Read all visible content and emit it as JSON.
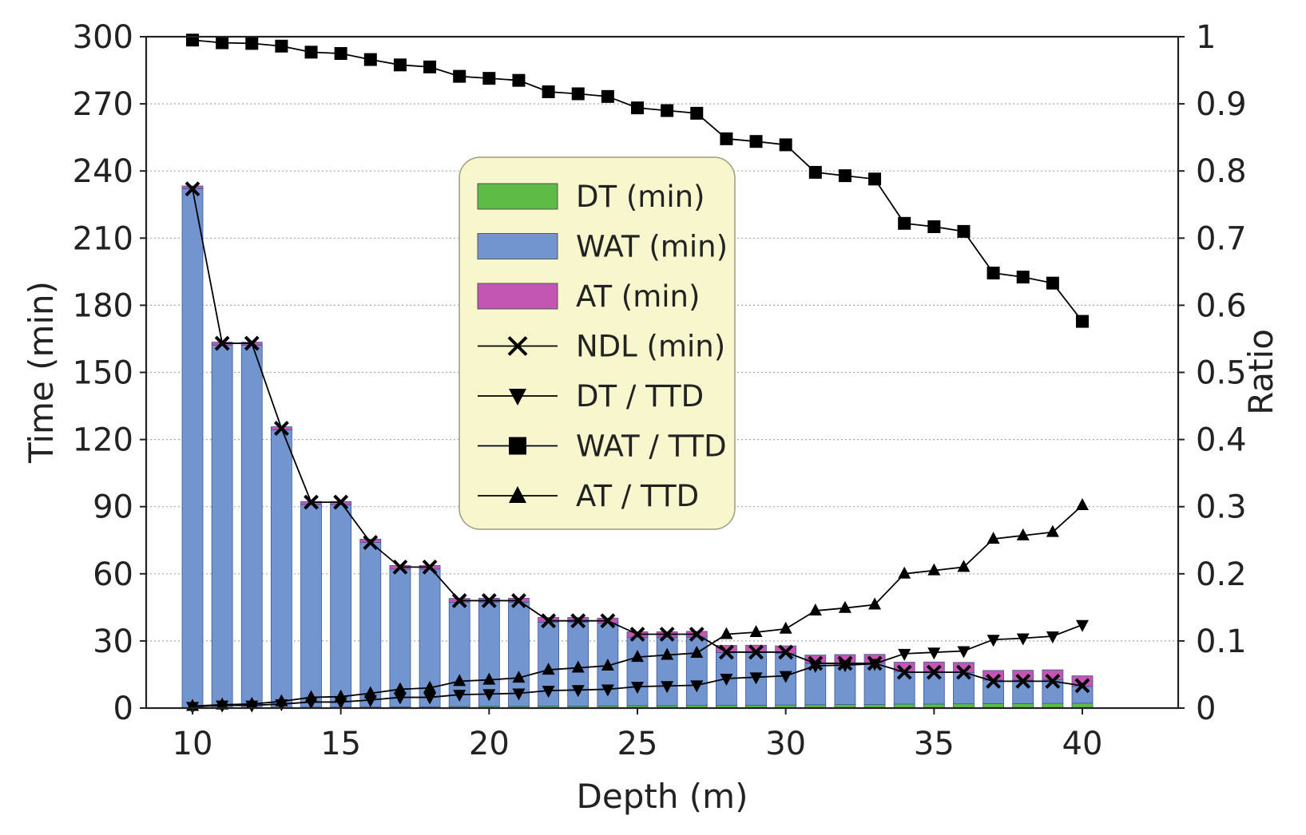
{
  "chart_data": {
    "type": "bar",
    "xlabel": "Depth (m)",
    "ylabel": "Time (min)",
    "y2label": "Ratio",
    "xlim": [
      10,
      40
    ],
    "ylim": [
      0,
      300
    ],
    "y2lim": [
      0,
      1
    ],
    "x_ticks": [
      "10",
      "15",
      "20",
      "25",
      "30",
      "35",
      "40"
    ],
    "y_ticks": [
      "0",
      "30",
      "60",
      "90",
      "120",
      "150",
      "180",
      "210",
      "240",
      "270",
      "300"
    ],
    "y2_ticks": [
      "0",
      "0.1",
      "0.2",
      "0.3",
      "0.4",
      "0.5",
      "0.6",
      "0.7",
      "0.8",
      "0.9",
      "1"
    ],
    "grid": "horizontal dotted",
    "legend_position": "center-left",
    "x": [
      10,
      11,
      12,
      13,
      14,
      15,
      16,
      17,
      18,
      19,
      20,
      21,
      22,
      23,
      24,
      25,
      26,
      27,
      28,
      29,
      30,
      31,
      32,
      33,
      34,
      35,
      36,
      37,
      38,
      39,
      40
    ],
    "series": [
      {
        "name": "DT (min)",
        "kind": "stacked-bar",
        "axis": "left",
        "color": "#5dbb46",
        "values": [
          0.1,
          0.2,
          0.2,
          0.3,
          0.4,
          0.4,
          0.5,
          0.6,
          0.6,
          0.7,
          0.8,
          0.8,
          0.9,
          0.9,
          1.0,
          1.1,
          1.1,
          1.2,
          1.3,
          1.3,
          1.4,
          1.5,
          1.6,
          1.6,
          1.8,
          1.8,
          1.9,
          2.0,
          2.0,
          2.1,
          2.2
        ]
      },
      {
        "name": "WAT (min)",
        "kind": "stacked-bar",
        "axis": "left",
        "color": "#7294cf",
        "values": [
          232.0,
          162.0,
          162.0,
          124.0,
          90.5,
          90.5,
          73.5,
          61.5,
          61.5,
          46.5,
          46.5,
          46.5,
          37.5,
          37.5,
          37.0,
          30.5,
          30.5,
          30.5,
          23.5,
          23.5,
          23.0,
          18.5,
          18.5,
          18.5,
          14.5,
          14.5,
          14.0,
          10.5,
          10.5,
          10.5,
          7.5
        ]
      },
      {
        "name": "AT (min)",
        "kind": "stacked-bar",
        "axis": "left",
        "color": "#c256b2",
        "values": [
          1.2,
          1.3,
          1.3,
          1.4,
          1.4,
          1.4,
          1.5,
          1.6,
          1.6,
          1.8,
          1.8,
          1.8,
          2.1,
          2.1,
          2.2,
          2.5,
          2.5,
          2.6,
          3.2,
          3.3,
          3.4,
          3.7,
          3.8,
          3.9,
          4.2,
          4.3,
          4.5,
          4.3,
          4.4,
          4.5,
          4.7
        ]
      },
      {
        "name": "NDL (min)",
        "kind": "line",
        "axis": "left",
        "marker": "x",
        "values": [
          232,
          163,
          163,
          125,
          92,
          92,
          74,
          63,
          63,
          48,
          48,
          48,
          39,
          39,
          39,
          33,
          33,
          33,
          25,
          25,
          25,
          20,
          20,
          20,
          16,
          16,
          16,
          12,
          12,
          12,
          10
        ]
      },
      {
        "name": "DT / TTD",
        "kind": "line",
        "axis": "right",
        "marker": "triangle-down",
        "values": [
          0.002,
          0.004,
          0.004,
          0.006,
          0.009,
          0.009,
          0.012,
          0.016,
          0.016,
          0.02,
          0.021,
          0.022,
          0.026,
          0.027,
          0.028,
          0.032,
          0.033,
          0.034,
          0.044,
          0.046,
          0.048,
          0.063,
          0.064,
          0.066,
          0.081,
          0.083,
          0.085,
          0.102,
          0.104,
          0.107,
          0.124
        ]
      },
      {
        "name": "WAT / TTD",
        "kind": "line",
        "axis": "right",
        "marker": "square",
        "values": [
          0.995,
          0.991,
          0.99,
          0.986,
          0.977,
          0.975,
          0.966,
          0.958,
          0.955,
          0.941,
          0.938,
          0.935,
          0.918,
          0.915,
          0.911,
          0.894,
          0.89,
          0.886,
          0.848,
          0.844,
          0.839,
          0.798,
          0.793,
          0.788,
          0.722,
          0.717,
          0.71,
          0.648,
          0.642,
          0.633,
          0.576
        ]
      },
      {
        "name": "AT / TTD",
        "kind": "line",
        "axis": "right",
        "marker": "triangle-up",
        "values": [
          0.003,
          0.005,
          0.006,
          0.01,
          0.016,
          0.017,
          0.022,
          0.028,
          0.03,
          0.04,
          0.042,
          0.045,
          0.057,
          0.06,
          0.063,
          0.076,
          0.079,
          0.082,
          0.11,
          0.113,
          0.118,
          0.145,
          0.149,
          0.154,
          0.2,
          0.205,
          0.21,
          0.252,
          0.257,
          0.262,
          0.302
        ]
      }
    ]
  }
}
